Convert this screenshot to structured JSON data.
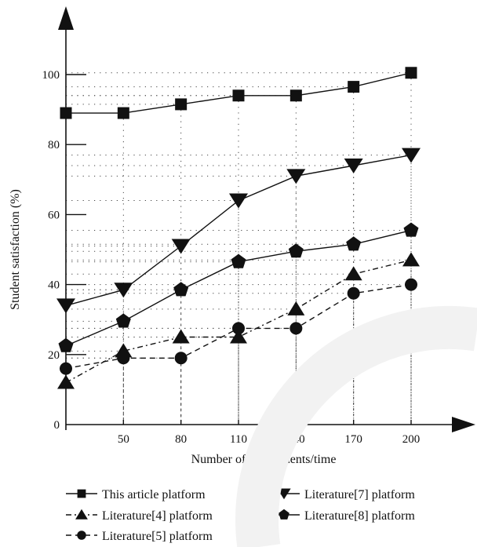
{
  "chart_data": {
    "type": "line",
    "xlabel": "Number of experiments/time",
    "ylabel": "Student satisfaction (%)",
    "x_tick_labels": [
      "50",
      "80",
      "110",
      "140",
      "170",
      "200"
    ],
    "y_tick_labels": [
      "0",
      "20",
      "40",
      "60",
      "80",
      "100"
    ],
    "x": [
      20,
      50,
      80,
      110,
      140,
      170,
      200
    ],
    "xlim": [
      20,
      200
    ],
    "ylim": [
      0,
      100
    ],
    "grid": "dotted guide lines from points to axes",
    "legend_placement": "bottom",
    "series": [
      {
        "name": "This article platform",
        "marker": "square",
        "dash": "solid",
        "values": [
          89,
          89,
          91.5,
          94,
          94,
          96.5,
          100.5
        ]
      },
      {
        "name": "Literature[4] platform",
        "marker": "triangle-up",
        "dash": "dashdot",
        "values": [
          12,
          21,
          25,
          25,
          33,
          43,
          47
        ]
      },
      {
        "name": "Literature[5] platform",
        "marker": "circle",
        "dash": "dashed",
        "values": [
          16,
          19,
          19,
          27.5,
          27.5,
          37.5,
          40
        ]
      },
      {
        "name": "Literature[7] platform",
        "marker": "triangle-down",
        "dash": "solid",
        "values": [
          34,
          38.5,
          51,
          64,
          71,
          74,
          77
        ]
      },
      {
        "name": "Literature[8] platform",
        "marker": "pentagon",
        "dash": "solid",
        "values": [
          22.5,
          29.5,
          38.5,
          46.5,
          49.5,
          51.5,
          55.5
        ]
      }
    ]
  }
}
